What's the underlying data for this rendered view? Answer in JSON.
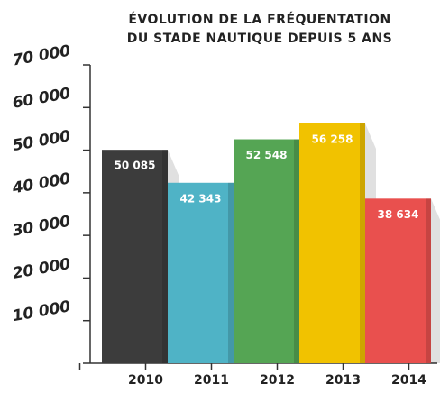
{
  "chart_data": {
    "type": "bar",
    "title": [
      "ÉVOLUTION DE LA FRÉQUENTATION",
      "DU STADE NAUTIQUE DEPUIS 5 ANS"
    ],
    "categories": [
      "2010",
      "2011",
      "2012",
      "2013",
      "2014"
    ],
    "values": [
      50085,
      42343,
      52548,
      56258,
      38634
    ],
    "value_labels": [
      "50 085",
      "42 343",
      "52 548",
      "56 258",
      "38 634"
    ],
    "colors": [
      "#3c3c3c",
      "#4fb3c6",
      "#55a554",
      "#f1c200",
      "#e9504e"
    ],
    "ylim": [
      0,
      70000
    ],
    "yticks": [
      {
        "value": 10000,
        "label": "10 000"
      },
      {
        "value": 20000,
        "label": "20 000"
      },
      {
        "value": 30000,
        "label": "30 000"
      },
      {
        "value": 40000,
        "label": "40 000"
      },
      {
        "value": 50000,
        "label": "50 000"
      },
      {
        "value": 60000,
        "label": "60 000"
      },
      {
        "value": 70000,
        "label": "70 000"
      }
    ]
  }
}
